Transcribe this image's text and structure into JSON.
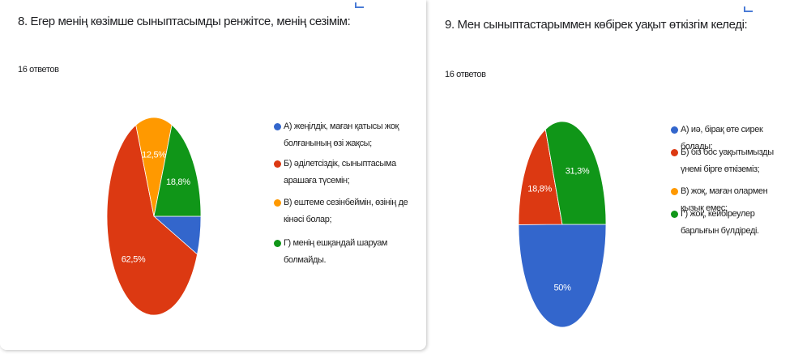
{
  "chart_data": [
    {
      "type": "pie",
      "title": "8. Егер менің көзімше сыныптасымды ренжітсе, менің сезімім:",
      "subtitle": "16 ответов",
      "categories": [
        "А) жеңілдік, маған қатысы жоқ болғанының өзі жақсы;",
        "Б) әділетсіздік, сыныптасыма арашаға түсемін;",
        "В) ештеме сезінбеймін, өзінің де кінәсі болар;",
        "Г) менің ешқандай шаруам болмайды."
      ],
      "values": [
        6.3,
        62.5,
        12.5,
        18.8
      ],
      "value_labels": [
        null,
        "62,5%",
        "12,5%",
        "18,8%"
      ],
      "colors": [
        "#3366cc",
        "#dc3912",
        "#ff9900",
        "#109618"
      ]
    },
    {
      "type": "pie",
      "title": "9. Мен сыныптастарыммен көбірек уақыт өткізгім келеді:",
      "subtitle": "16 ответов",
      "categories": [
        "А) иә, бірақ өте сирек болады;",
        "Б) біз бос уақытымызды үнемі бірге өткіземіз;",
        "В) жоқ, маған олармен қызық емес;",
        "Г) жоқ, кейбіреулер барлығын бүлдіреді."
      ],
      "values": [
        50,
        18.8,
        0,
        31.3
      ],
      "value_labels": [
        "50%",
        "18,8%",
        null,
        "31,3%"
      ],
      "colors": [
        "#3366cc",
        "#dc3912",
        "#ff9900",
        "#109618"
      ]
    }
  ]
}
